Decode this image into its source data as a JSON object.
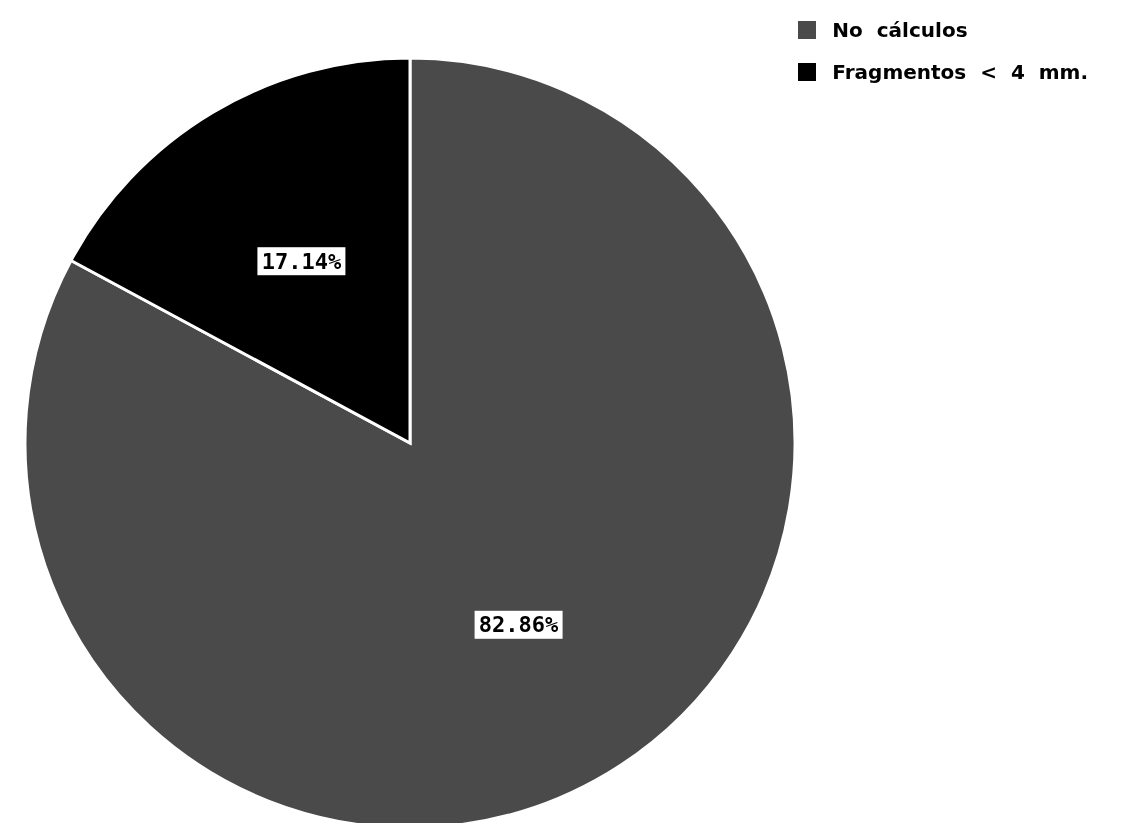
{
  "chart_data": {
    "type": "pie",
    "categories": [
      "No  cálculos",
      "Fragmentos  <  4  mm."
    ],
    "values": [
      82.86,
      17.14
    ],
    "colors": [
      "#4a4a4a",
      "#000000"
    ],
    "value_labels": [
      "82.86%",
      "17.14%"
    ],
    "legend": "top right"
  }
}
